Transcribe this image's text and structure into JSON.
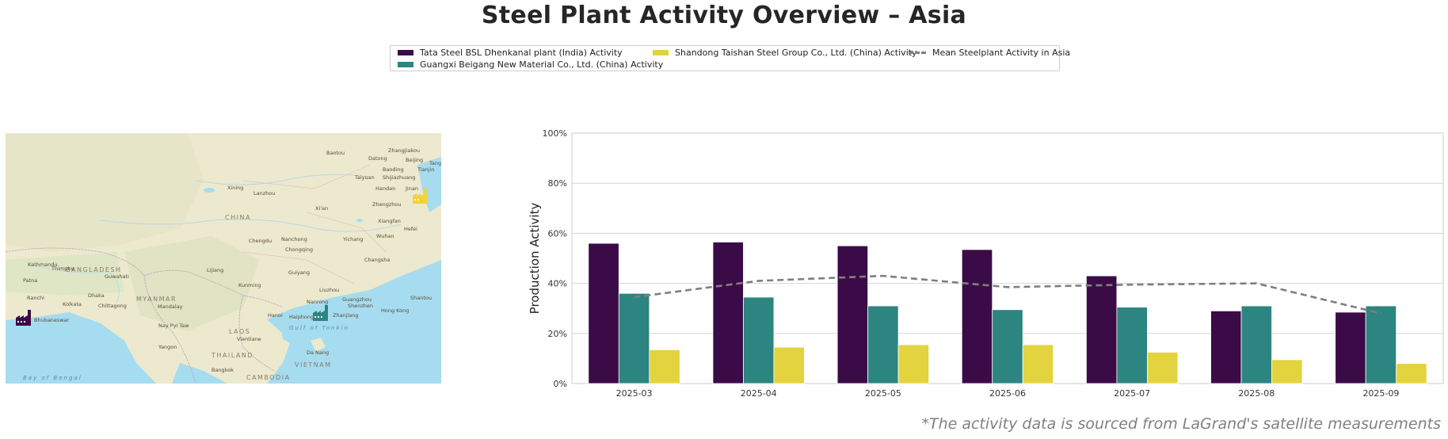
{
  "title": "Steel Plant Activity Overview – Asia",
  "legend": {
    "items": [
      {
        "label": "Tata Steel BSL Dhenkanal plant (India) Activity",
        "color": "#3b0b47",
        "kind": "bar"
      },
      {
        "label": "Guangxi Beigang New Material Co., Ltd. (China) Activity",
        "color": "#2c8580",
        "kind": "bar"
      },
      {
        "label": "Shandong Taishan Steel Group Co., Ltd. (China) Activity",
        "color": "#e3d33e",
        "kind": "bar"
      },
      {
        "label": "Mean Steelplant Activity in Asia",
        "color": "#7f7f7f",
        "kind": "dashed-line"
      }
    ]
  },
  "map": {
    "country_labels": [
      "CHINA",
      "MYANMAR",
      "LAOS",
      "THAILAND",
      "VIETNAM",
      "CAMBODIA",
      "BANGLADESH"
    ],
    "sea_labels": [
      "Bay of Bengal",
      "Gulf of Tonkin"
    ],
    "city_labels": [
      "Baotou",
      "Zhangjiakou",
      "Datong",
      "Beijing",
      "Tang",
      "Baoding",
      "Tianjin",
      "Taiyuan",
      "Shijiazhuang",
      "Xining",
      "Handan",
      "Jinan",
      "Lanzhou",
      "Zhengzhou",
      "Xi'an",
      "Xiangfan",
      "Hefei",
      "Chengdu",
      "Nanchong",
      "Wuhan",
      "Yichang",
      "Changsha",
      "Chongqing",
      "Guiyang",
      "Kunming",
      "Liuzhou",
      "Nanning",
      "Guangzhou",
      "Shenzhen",
      "Hong Kong",
      "Shantou",
      "Haiphong",
      "Hanoi",
      "Lijiang",
      "Guwahati",
      "Dhaka",
      "Kolkata",
      "Patna",
      "Kathmandu",
      "Thimphu",
      "Chittagong",
      "Mandalay",
      "Nay Pyi Taw",
      "Yangon",
      "Vientiane",
      "Da Nang",
      "Bangkok",
      "Zhanjiang",
      "Bhubaneswar",
      "Ranchi"
    ],
    "markers": [
      {
        "name": "Tata Steel BSL Dhenkanal plant",
        "color": "#3b0b47",
        "icon": "factory-icon"
      },
      {
        "name": "Guangxi Beigang New Material Co., Ltd.",
        "color": "#2c8580",
        "icon": "factory-icon"
      },
      {
        "name": "Shandong Taishan Steel Group Co., Ltd.",
        "color": "#f2d33a",
        "icon": "factory-icon"
      }
    ]
  },
  "chart_data": {
    "type": "bar",
    "categories": [
      "2025-03",
      "2025-04",
      "2025-05",
      "2025-06",
      "2025-07",
      "2025-08",
      "2025-09"
    ],
    "series": [
      {
        "name": "Tata Steel BSL Dhenkanal plant (India) Activity",
        "color": "#3b0b47",
        "values": [
          56,
          56.5,
          55,
          53.5,
          43,
          29,
          28.5
        ]
      },
      {
        "name": "Guangxi Beigang New Material Co., Ltd. (China) Activity",
        "color": "#2c8580",
        "values": [
          36,
          34.5,
          31,
          29.5,
          30.5,
          31,
          31
        ]
      },
      {
        "name": "Shandong Taishan Steel Group Co., Ltd. (China) Activity",
        "color": "#e3d33e",
        "values": [
          13.5,
          14.5,
          15.5,
          15.5,
          12.5,
          9.5,
          8
        ]
      }
    ],
    "line_series": {
      "name": "Mean Steelplant Activity in Asia",
      "color": "#7f7f7f",
      "style": "dashed",
      "values": [
        34.5,
        41,
        43,
        38.5,
        39.5,
        40,
        28
      ]
    },
    "ylabel": "Production Activity",
    "xlabel": "",
    "ylim": [
      0,
      100
    ],
    "yticks": [
      0,
      20,
      40,
      60,
      80,
      100
    ],
    "ytick_labels": [
      "0%",
      "20%",
      "40%",
      "60%",
      "80%",
      "100%"
    ],
    "grid": "horizontal"
  },
  "footnote": "*The activity data is sourced from LaGrand's satellite measurements"
}
